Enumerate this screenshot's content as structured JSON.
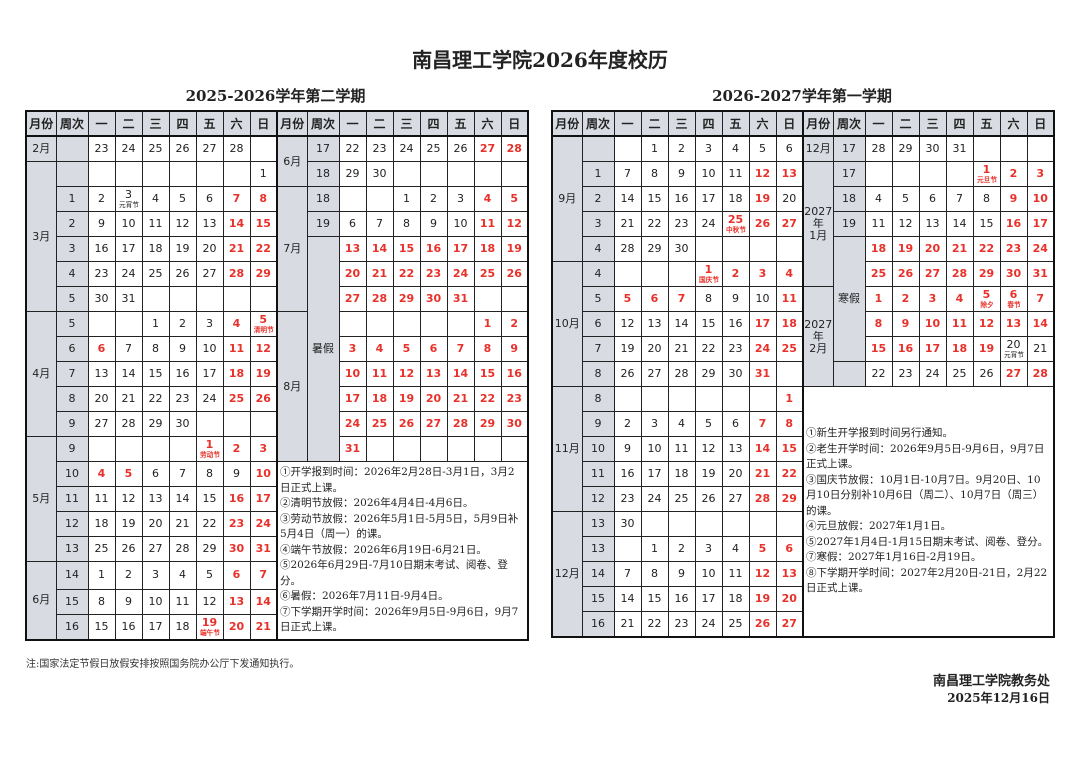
{
  "title": "南昌理工学院2026年度校历",
  "headers": [
    "月份",
    "周次",
    "一",
    "二",
    "三",
    "四",
    "五",
    "六",
    "日"
  ],
  "colors": {
    "holiday": "#e8312a",
    "header_bg": "#d8dce2"
  },
  "semesters": [
    {
      "title": "2025-2026学年第二学期",
      "left": [
        {
          "m": "2月",
          "w": "",
          "days": [
            "23",
            "24",
            "25",
            "26",
            "27",
            "28",
            ""
          ],
          "red": []
        },
        {
          "m": "3月",
          "w": "",
          "days": [
            "",
            "",
            "",
            "",
            "",
            "",
            "1"
          ],
          "red": []
        },
        {
          "m": "3月",
          "w": "1",
          "days": [
            "2",
            "3",
            "4",
            "5",
            "6",
            "7",
            "8"
          ],
          "red": [
            "7",
            "8"
          ],
          "notes": {
            "3": "元宵节"
          }
        },
        {
          "m": "3月",
          "w": "2",
          "days": [
            "9",
            "10",
            "11",
            "12",
            "13",
            "14",
            "15"
          ],
          "red": [
            "14",
            "15"
          ]
        },
        {
          "m": "3月",
          "w": "3",
          "days": [
            "16",
            "17",
            "18",
            "19",
            "20",
            "21",
            "22"
          ],
          "red": [
            "21",
            "22"
          ]
        },
        {
          "m": "3月",
          "w": "4",
          "days": [
            "23",
            "24",
            "25",
            "26",
            "27",
            "28",
            "29"
          ],
          "red": [
            "28",
            "29"
          ]
        },
        {
          "m": "3月",
          "w": "5",
          "days": [
            "30",
            "31",
            "",
            "",
            "",
            "",
            ""
          ],
          "red": []
        },
        {
          "m": "4月",
          "w": "5",
          "days": [
            "",
            "",
            "1",
            "2",
            "3",
            "4",
            "5"
          ],
          "red": [
            "4",
            "5"
          ],
          "notes": {
            "5": "清明节"
          }
        },
        {
          "m": "4月",
          "w": "6",
          "days": [
            "6",
            "7",
            "8",
            "9",
            "10",
            "11",
            "12"
          ],
          "red": [
            "6",
            "11",
            "12"
          ]
        },
        {
          "m": "4月",
          "w": "7",
          "days": [
            "13",
            "14",
            "15",
            "16",
            "17",
            "18",
            "19"
          ],
          "red": [
            "18",
            "19"
          ]
        },
        {
          "m": "4月",
          "w": "8",
          "days": [
            "20",
            "21",
            "22",
            "23",
            "24",
            "25",
            "26"
          ],
          "red": [
            "25",
            "26"
          ]
        },
        {
          "m": "4月",
          "w": "9",
          "days": [
            "27",
            "28",
            "29",
            "30",
            "",
            "",
            ""
          ],
          "red": []
        },
        {
          "m": "5月",
          "w": "9",
          "days": [
            "",
            "",
            "",
            "",
            "1",
            "2",
            "3"
          ],
          "red": [
            "1",
            "2",
            "3"
          ],
          "notes": {
            "1": "劳动节"
          }
        },
        {
          "m": "5月",
          "w": "10",
          "days": [
            "4",
            "5",
            "6",
            "7",
            "8",
            "9",
            "10"
          ],
          "red": [
            "4",
            "5",
            "10"
          ]
        },
        {
          "m": "5月",
          "w": "11",
          "days": [
            "11",
            "12",
            "13",
            "14",
            "15",
            "16",
            "17"
          ],
          "red": [
            "16",
            "17"
          ]
        },
        {
          "m": "5月",
          "w": "12",
          "days": [
            "18",
            "19",
            "20",
            "21",
            "22",
            "23",
            "24"
          ],
          "red": [
            "23",
            "24"
          ]
        },
        {
          "m": "5月",
          "w": "13",
          "days": [
            "25",
            "26",
            "27",
            "28",
            "29",
            "30",
            "31"
          ],
          "red": [
            "30",
            "31"
          ]
        },
        {
          "m": "6月",
          "w": "14",
          "days": [
            "1",
            "2",
            "3",
            "4",
            "5",
            "6",
            "7"
          ],
          "red": [
            "6",
            "7"
          ]
        },
        {
          "m": "6月",
          "w": "15",
          "days": [
            "8",
            "9",
            "10",
            "11",
            "12",
            "13",
            "14"
          ],
          "red": [
            "13",
            "14"
          ]
        },
        {
          "m": "6月",
          "w": "16",
          "days": [
            "15",
            "16",
            "17",
            "18",
            "19",
            "20",
            "21"
          ],
          "red": [
            "19",
            "20",
            "21"
          ],
          "notes": {
            "19": "端午节"
          }
        }
      ],
      "right": [
        {
          "m": "6月",
          "w": "17",
          "days": [
            "22",
            "23",
            "24",
            "25",
            "26",
            "27",
            "28"
          ],
          "red": [
            "27",
            "28"
          ]
        },
        {
          "m": "6月",
          "w": "18",
          "days": [
            "29",
            "30",
            "",
            "",
            "",
            "",
            ""
          ],
          "red": []
        },
        {
          "m": "7月",
          "w": "18",
          "days": [
            "",
            "",
            "1",
            "2",
            "3",
            "4",
            "5"
          ],
          "red": [
            "4",
            "5"
          ]
        },
        {
          "m": "7月",
          "w": "19",
          "days": [
            "6",
            "7",
            "8",
            "9",
            "10",
            "11",
            "12"
          ],
          "red": [
            "11",
            "12"
          ]
        },
        {
          "m": "7月",
          "w": "暑假",
          "days": [
            "13",
            "14",
            "15",
            "16",
            "17",
            "18",
            "19"
          ],
          "all_red": true
        },
        {
          "m": "7月",
          "w": "暑假",
          "days": [
            "20",
            "21",
            "22",
            "23",
            "24",
            "25",
            "26"
          ],
          "all_red": true
        },
        {
          "m": "7月",
          "w": "暑假",
          "days": [
            "27",
            "28",
            "29",
            "30",
            "31",
            "",
            ""
          ],
          "all_red": true
        },
        {
          "m": "8月",
          "w": "暑假",
          "days": [
            "",
            "",
            "",
            "",
            "",
            "1",
            "2"
          ],
          "all_red": true
        },
        {
          "m": "8月",
          "w": "暑假",
          "days": [
            "3",
            "4",
            "5",
            "6",
            "7",
            "8",
            "9"
          ],
          "all_red": true
        },
        {
          "m": "8月",
          "w": "暑假",
          "days": [
            "10",
            "11",
            "12",
            "13",
            "14",
            "15",
            "16"
          ],
          "all_red": true
        },
        {
          "m": "8月",
          "w": "暑假",
          "days": [
            "17",
            "18",
            "19",
            "20",
            "21",
            "22",
            "23"
          ],
          "all_red": true
        },
        {
          "m": "8月",
          "w": "暑假",
          "days": [
            "24",
            "25",
            "26",
            "27",
            "28",
            "29",
            "30"
          ],
          "all_red": true
        },
        {
          "m": "8月",
          "w": "暑假",
          "days": [
            "31",
            "",
            "",
            "",
            "",
            "",
            ""
          ],
          "all_red": true
        }
      ],
      "notes": [
        "①开学报到时间：2026年2月28日-3月1日，3月2日正式上课。",
        "②清明节放假：2026年4月4日-4月6日。",
        "③劳动节放假：2026年5月1日-5月5日，5月9日补5月4日（周一）的课。",
        "④端午节放假：2026年6月19日-6月21日。",
        "⑤2026年6月29日-7月10日期末考试、阅卷、登分。",
        "⑥暑假：2026年7月11日-9月4日。",
        "⑦下学期开学时间：2026年9月5日-9月6日，9月7日正式上课。"
      ]
    },
    {
      "title": "2026-2027学年第一学期",
      "left": [
        {
          "m": "9月",
          "w": "",
          "days": [
            "",
            "1",
            "2",
            "3",
            "4",
            "5",
            "6"
          ],
          "red": []
        },
        {
          "m": "9月",
          "w": "1",
          "days": [
            "7",
            "8",
            "9",
            "10",
            "11",
            "12",
            "13"
          ],
          "red": [
            "12",
            "13"
          ]
        },
        {
          "m": "9月",
          "w": "2",
          "days": [
            "14",
            "15",
            "16",
            "17",
            "18",
            "19",
            "20"
          ],
          "red": [
            "19"
          ]
        },
        {
          "m": "9月",
          "w": "3",
          "days": [
            "21",
            "22",
            "23",
            "24",
            "25",
            "26",
            "27"
          ],
          "red": [
            "25",
            "26",
            "27"
          ],
          "notes": {
            "25": "中秋节"
          }
        },
        {
          "m": "9月",
          "w": "4",
          "days": [
            "28",
            "29",
            "30",
            "",
            "",
            "",
            ""
          ],
          "red": []
        },
        {
          "m": "10月",
          "w": "4",
          "days": [
            "",
            "",
            "",
            "1",
            "2",
            "3",
            "4"
          ],
          "red": [
            "1",
            "2",
            "3",
            "4"
          ],
          "notes": {
            "1": "国庆节"
          }
        },
        {
          "m": "10月",
          "w": "5",
          "days": [
            "5",
            "6",
            "7",
            "8",
            "9",
            "10",
            "11"
          ],
          "red": [
            "5",
            "6",
            "7",
            "11"
          ]
        },
        {
          "m": "10月",
          "w": "6",
          "days": [
            "12",
            "13",
            "14",
            "15",
            "16",
            "17",
            "18"
          ],
          "red": [
            "17",
            "18"
          ]
        },
        {
          "m": "10月",
          "w": "7",
          "days": [
            "19",
            "20",
            "21",
            "22",
            "23",
            "24",
            "25"
          ],
          "red": [
            "24",
            "25"
          ]
        },
        {
          "m": "10月",
          "w": "8",
          "days": [
            "26",
            "27",
            "28",
            "29",
            "30",
            "31",
            ""
          ],
          "red": [
            "31"
          ]
        },
        {
          "m": "11月",
          "w": "8",
          "days": [
            "",
            "",
            "",
            "",
            "",
            "",
            "1"
          ],
          "red": [
            "1"
          ]
        },
        {
          "m": "11月",
          "w": "9",
          "days": [
            "2",
            "3",
            "4",
            "5",
            "6",
            "7",
            "8"
          ],
          "red": [
            "7",
            "8"
          ]
        },
        {
          "m": "11月",
          "w": "10",
          "days": [
            "9",
            "10",
            "11",
            "12",
            "13",
            "14",
            "15"
          ],
          "red": [
            "14",
            "15"
          ]
        },
        {
          "m": "11月",
          "w": "11",
          "days": [
            "16",
            "17",
            "18",
            "19",
            "20",
            "21",
            "22"
          ],
          "red": [
            "21",
            "22"
          ]
        },
        {
          "m": "11月",
          "w": "12",
          "days": [
            "23",
            "24",
            "25",
            "26",
            "27",
            "28",
            "29"
          ],
          "red": [
            "28",
            "29"
          ]
        },
        {
          "m": "12月",
          "w": "13",
          "days": [
            "30",
            "",
            "",
            "",
            "",
            "",
            ""
          ],
          "red": []
        },
        {
          "m": "12月",
          "w": "13",
          "days": [
            "",
            "1",
            "2",
            "3",
            "4",
            "5",
            "6"
          ],
          "red": [
            "5",
            "6"
          ]
        },
        {
          "m": "12月",
          "w": "14",
          "days": [
            "7",
            "8",
            "9",
            "10",
            "11",
            "12",
            "13"
          ],
          "red": [
            "12",
            "13"
          ]
        },
        {
          "m": "12月",
          "w": "15",
          "days": [
            "14",
            "15",
            "16",
            "17",
            "18",
            "19",
            "20"
          ],
          "red": [
            "19",
            "20"
          ]
        },
        {
          "m": "12月",
          "w": "16",
          "days": [
            "21",
            "22",
            "23",
            "24",
            "25",
            "26",
            "27"
          ],
          "red": [
            "26",
            "27"
          ]
        }
      ],
      "right": [
        {
          "m": "12月",
          "w": "17",
          "days": [
            "28",
            "29",
            "30",
            "31",
            "",
            "",
            ""
          ],
          "red": []
        },
        {
          "m": "2027\n年\n1月",
          "w": "17",
          "days": [
            "",
            "",
            "",
            "",
            "1",
            "2",
            "3"
          ],
          "red": [
            "1",
            "2",
            "3"
          ],
          "notes": {
            "1": "元旦节"
          }
        },
        {
          "m": "2027\n年\n1月",
          "w": "18",
          "days": [
            "4",
            "5",
            "6",
            "7",
            "8",
            "9",
            "10"
          ],
          "red": [
            "9",
            "10"
          ]
        },
        {
          "m": "2027\n年\n1月",
          "w": "19",
          "days": [
            "11",
            "12",
            "13",
            "14",
            "15",
            "16",
            "17"
          ],
          "red": [
            "16",
            "17"
          ]
        },
        {
          "m": "2027\n年\n1月",
          "w": "寒假",
          "days": [
            "18",
            "19",
            "20",
            "21",
            "22",
            "23",
            "24"
          ],
          "all_red": true
        },
        {
          "m": "2027\n年\n1月",
          "w": "寒假",
          "days": [
            "25",
            "26",
            "27",
            "28",
            "29",
            "30",
            "31"
          ],
          "all_red": true
        },
        {
          "m": "2027\n年\n2月",
          "w": "寒假",
          "days": [
            "1",
            "2",
            "3",
            "4",
            "5",
            "6",
            "7"
          ],
          "all_red": true,
          "notes": {
            "5": "除夕",
            "6": "春节"
          }
        },
        {
          "m": "2027\n年\n2月",
          "w": "寒假",
          "days": [
            "8",
            "9",
            "10",
            "11",
            "12",
            "13",
            "14"
          ],
          "all_red": true
        },
        {
          "m": "2027\n年\n2月",
          "w": "寒假",
          "days": [
            "15",
            "16",
            "17",
            "18",
            "19",
            "20",
            "21"
          ],
          "red": [
            "15",
            "16",
            "17",
            "18",
            "19"
          ],
          "notes": {
            "20": "元宵节"
          }
        },
        {
          "m": "2027\n年\n2月",
          "w": "",
          "days": [
            "22",
            "23",
            "24",
            "25",
            "26",
            "27",
            "28"
          ],
          "red": [
            "27",
            "28"
          ]
        }
      ],
      "notes": [
        "①新生开学报到时间另行通知。",
        "②老生开学时间：2026年9月5日-9月6日，9月7日正式上课。",
        "③国庆节放假：10月1日-10月7日。9月20日、10月10日分别补10月6日（周二）、10月7日（周三）的课。",
        "④元旦放假：2027年1月1日。",
        "⑤2027年1月4日-1月15日期末考试、阅卷、登分。",
        "⑦寒假：2027年1月16日-2月19日。",
        "⑧下学期开学时间：2027年2月20日-21日，2月22日正式上课。"
      ]
    }
  ],
  "footnote": "注:国家法定节假日放假安排按照国务院办公厅下发通知执行。",
  "issuer": "南昌理工学院教务处",
  "date": "2025年12月16日"
}
